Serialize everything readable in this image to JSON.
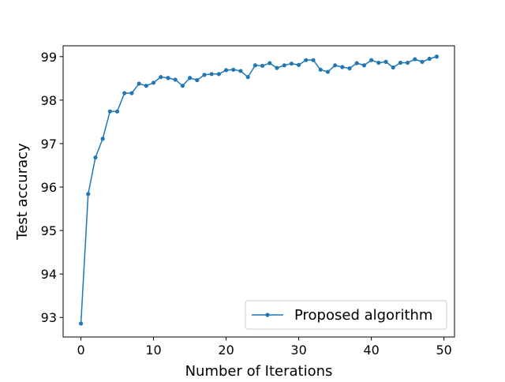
{
  "chart_data": {
    "type": "line",
    "title": "",
    "xlabel": "Number of Iterations",
    "ylabel": "Test accuracy",
    "xlim": [
      -2.45,
      51.45
    ],
    "ylim": [
      92.55,
      99.25
    ],
    "xticks": [
      0,
      10,
      20,
      30,
      40,
      50
    ],
    "yticks": [
      93,
      94,
      95,
      96,
      97,
      98,
      99
    ],
    "grid": false,
    "legend_position": "lower-right",
    "series": [
      {
        "name": "Proposed algorithm",
        "color": "#1f77b4",
        "marker": "circle",
        "x": [
          0,
          1,
          2,
          3,
          4,
          5,
          6,
          7,
          8,
          9,
          10,
          11,
          12,
          13,
          14,
          15,
          16,
          17,
          18,
          19,
          20,
          21,
          22,
          23,
          24,
          25,
          26,
          27,
          28,
          29,
          30,
          31,
          32,
          33,
          34,
          35,
          36,
          37,
          38,
          39,
          40,
          41,
          42,
          43,
          44,
          45,
          46,
          47,
          48,
          49
        ],
        "y": [
          92.86,
          95.84,
          96.68,
          97.11,
          97.74,
          97.74,
          98.16,
          98.16,
          98.38,
          98.33,
          98.4,
          98.53,
          98.51,
          98.47,
          98.33,
          98.51,
          98.46,
          98.58,
          98.6,
          98.6,
          98.69,
          98.7,
          98.67,
          98.53,
          98.8,
          98.79,
          98.85,
          98.74,
          98.8,
          98.84,
          98.81,
          98.92,
          98.92,
          98.7,
          98.65,
          98.8,
          98.76,
          98.73,
          98.85,
          98.8,
          98.92,
          98.86,
          98.88,
          98.75,
          98.86,
          98.86,
          98.94,
          98.88,
          98.95,
          99.0
        ]
      }
    ]
  }
}
